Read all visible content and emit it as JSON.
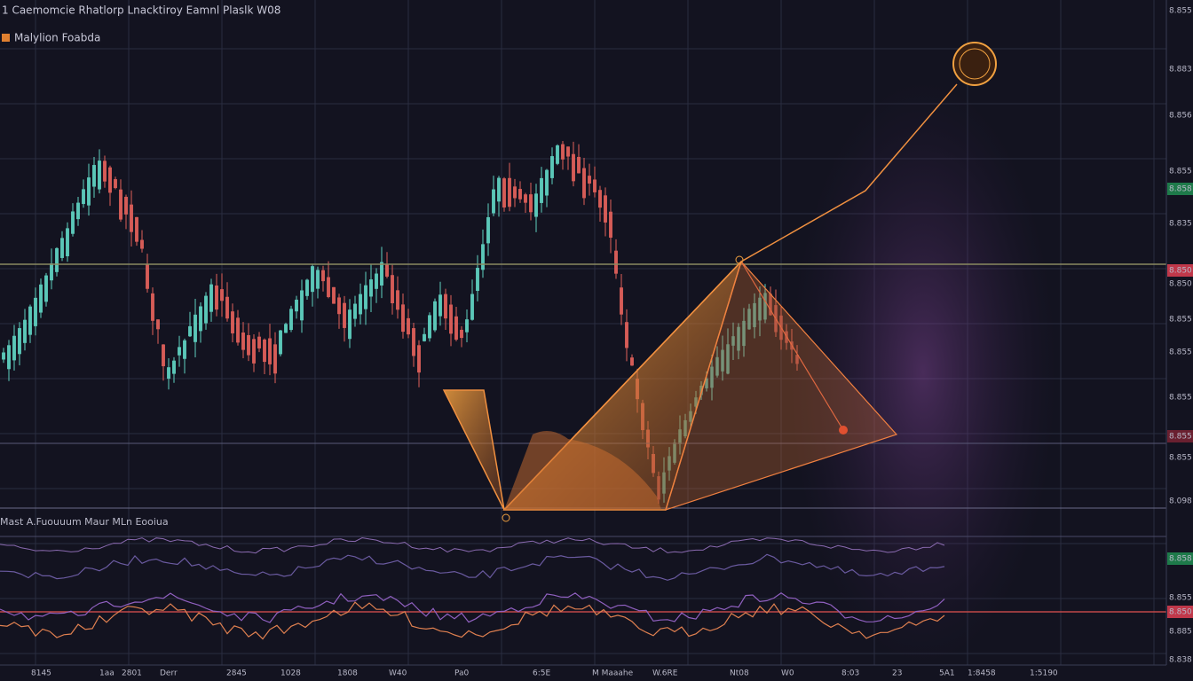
{
  "header": {
    "title": "1 Caemomcie Rhatlorp Lnacktiroy Eamnl Plaslk W08",
    "symbol": "Malylion Foabda"
  },
  "indicator": {
    "label": "Mast A.Fuouuum Maur MLn Eooiua"
  },
  "price_axis": [
    "8.855",
    "8.883",
    "8.856",
    "8.855",
    "8.858",
    "8.835",
    "8.850",
    "8.850",
    "8.855",
    "8.855",
    "8.855",
    "8.855",
    "8.855",
    "8.098",
    "8.858",
    "8.855",
    "8.850",
    "8.885",
    "8.838"
  ],
  "time_axis": [
    "8145",
    "1aa",
    "2801",
    "Derr",
    "2845",
    "1028",
    "1808",
    "W40",
    "Pa0",
    "6:5E",
    "M Maaahe",
    "W.6RE",
    "Nt08",
    "W0",
    "8:03",
    "23",
    "5A1",
    "1:8458",
    "1:5190"
  ]
}
